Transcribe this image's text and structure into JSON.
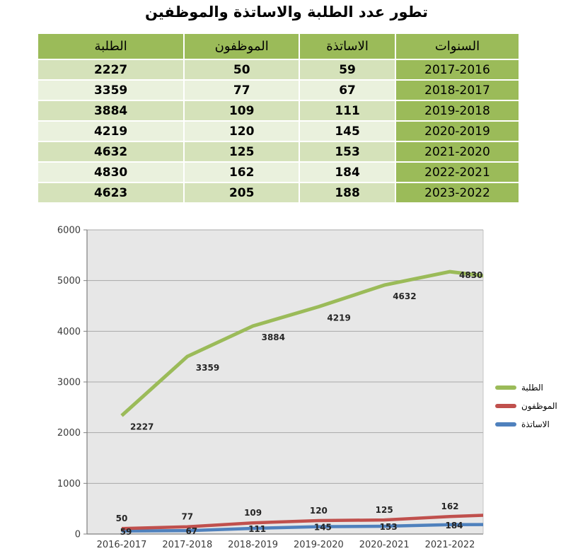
{
  "page_title": "تطور عدد الطلبة والاساتذة والموظفين",
  "table": {
    "headers": [
      "الطلبة",
      "الموظفون",
      "الاساتذة",
      "السنوات"
    ],
    "rows": [
      [
        "2227",
        "50",
        "59",
        "2017-2016"
      ],
      [
        "3359",
        "77",
        "67",
        "2018-2017"
      ],
      [
        "3884",
        "109",
        "111",
        "2019-2018"
      ],
      [
        "4219",
        "120",
        "145",
        "2020-2019"
      ],
      [
        "4632",
        "125",
        "153",
        "2021-2020"
      ],
      [
        "4830",
        "162",
        "184",
        "2022-2021"
      ],
      [
        "4623",
        "205",
        "188",
        "2023-2022"
      ]
    ]
  },
  "chart_data": {
    "type": "line",
    "stacked": true,
    "title": "",
    "categories": [
      "2016-2017",
      "2017-2018",
      "2018-2019",
      "2019-2020",
      "2020-2021",
      "2021-2022"
    ],
    "series": [
      {
        "name": "الطلبة",
        "color": "#9bbb59",
        "values": [
          2227,
          3359,
          3884,
          4219,
          4632,
          4830,
          4623
        ]
      },
      {
        "name": "الموظفون",
        "color": "#c0504d",
        "values": [
          50,
          77,
          109,
          120,
          125,
          162,
          205
        ]
      },
      {
        "name": "الاساتذة",
        "color": "#4f81bd",
        "values": [
          59,
          67,
          111,
          145,
          153,
          184,
          188
        ]
      }
    ],
    "stack_order_bottom_to_top": [
      "الاساتذة",
      "الموظفون",
      "الطلبة"
    ],
    "ylim": [
      0,
      6000
    ],
    "yticks": [
      0,
      1000,
      2000,
      3000,
      4000,
      5000,
      6000
    ],
    "grid": true,
    "legend_position": "right",
    "note": "Lines are drawn as a stacked line chart; a 7th data point exists and is clipped at the right edge, its axis label is not shown"
  },
  "colors": {
    "header_green": "#9bbb59",
    "row_tint_dark": "#d5e2ba",
    "row_tint_light": "#eaf1dd",
    "plot_bg": "#e7e7e7",
    "grid_line": "#a8a8a8",
    "axis_line": "#7f7f7f",
    "data_label_text": "#262626",
    "tick_label_text": "#3a3a3a"
  }
}
